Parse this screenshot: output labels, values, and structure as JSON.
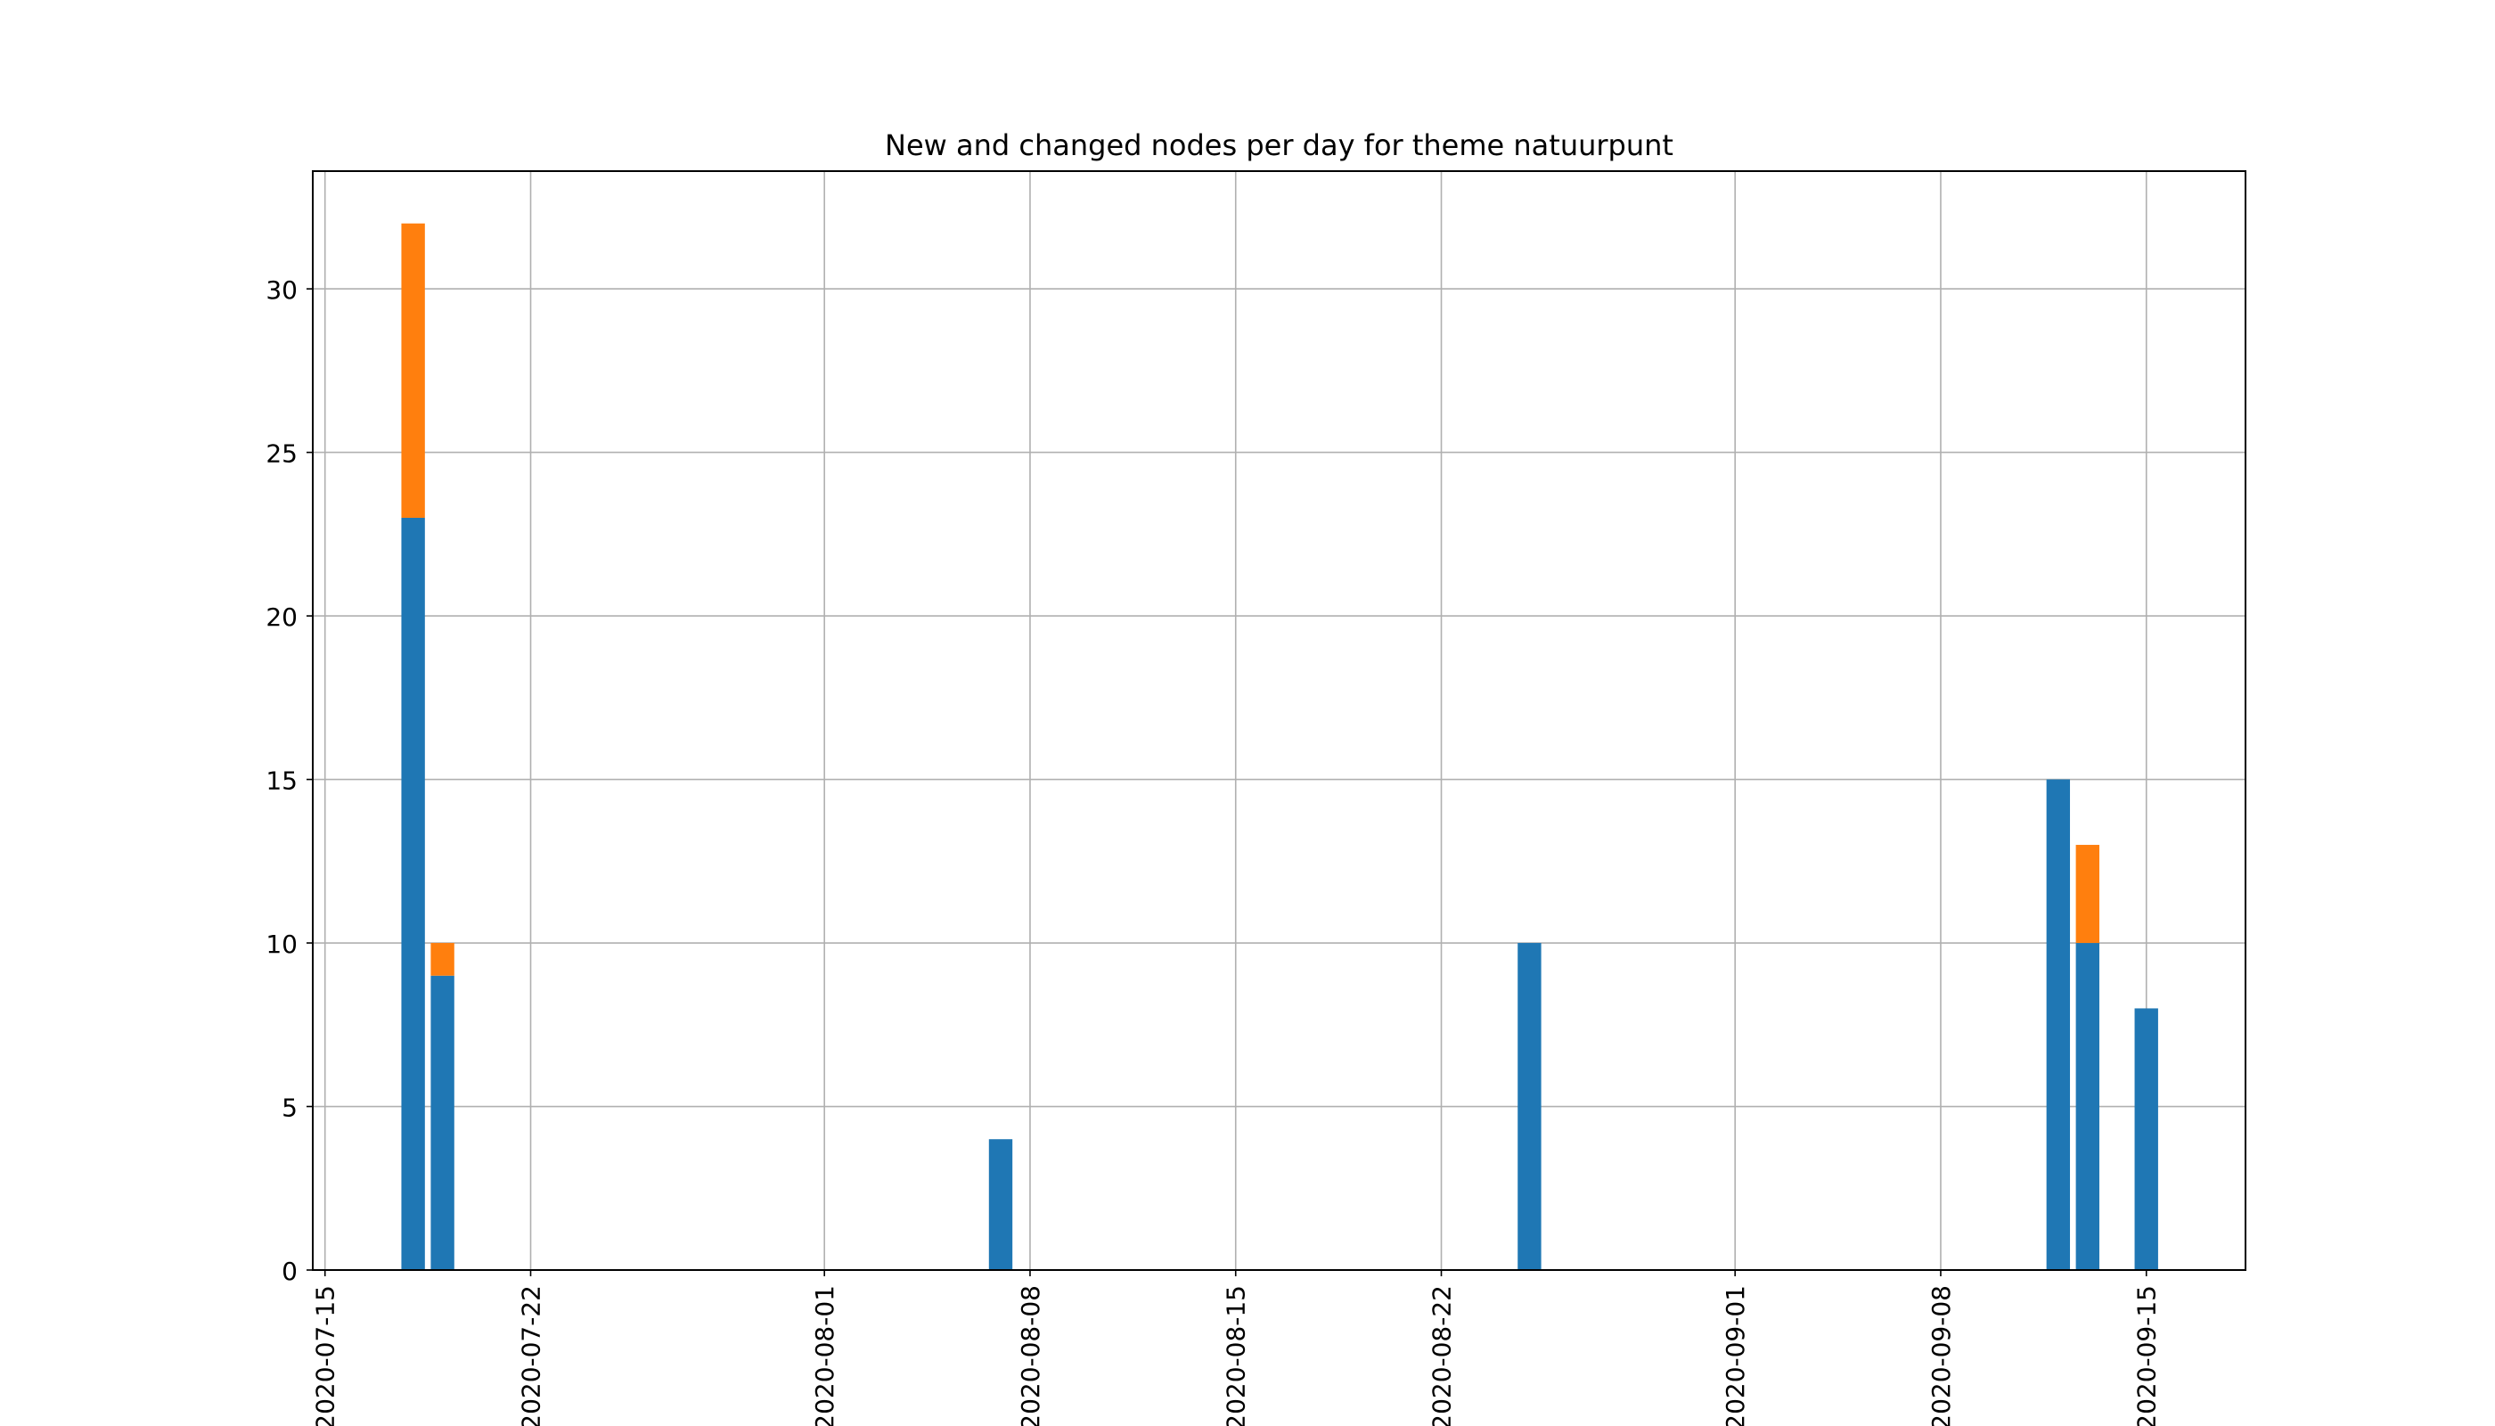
{
  "chart_data": {
    "type": "bar",
    "stacked": true,
    "title": "New and changed nodes per day for theme natuurpunt",
    "xlabel": "",
    "ylabel": "",
    "grid": true,
    "legend": "none",
    "x_dates": [
      "2020-07-18",
      "2020-07-19",
      "2020-08-07",
      "2020-08-25",
      "2020-09-12",
      "2020-09-13",
      "2020-09-15"
    ],
    "series": [
      {
        "color": "#ff7f0e",
        "values": [
          9,
          1,
          0,
          0,
          0,
          3,
          0
        ]
      },
      {
        "color": "#1f77b4",
        "values": [
          23,
          9,
          4,
          10,
          15,
          10,
          8
        ]
      }
    ],
    "xlim": [
      "2020-07-14T14:00",
      "2020-09-18T09:00"
    ],
    "ylim": [
      0,
      33.6
    ],
    "x_ticks": [
      "2020-07-15",
      "2020-07-22",
      "2020-08-01",
      "2020-08-08",
      "2020-08-15",
      "2020-08-22",
      "2020-09-01",
      "2020-09-08",
      "2020-09-15"
    ],
    "y_ticks": [
      0,
      5,
      10,
      15,
      20,
      25,
      30
    ]
  }
}
